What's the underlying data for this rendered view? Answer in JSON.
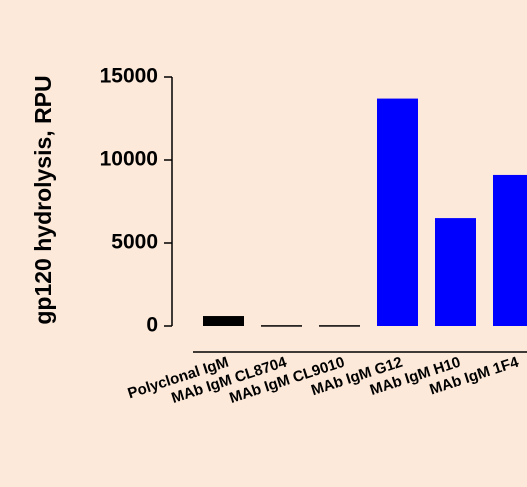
{
  "chart_data": {
    "type": "bar",
    "title": "",
    "xlabel": "",
    "ylabel": "gp120 hydrolysis, RPU",
    "ylim": [
      0,
      15000
    ],
    "yticks": [
      0,
      5000,
      10000,
      15000
    ],
    "ytick_labels": [
      "0",
      "5000",
      "10000",
      "15000"
    ],
    "categories": [
      "Polyclonal IgM",
      "MAb IgM CL8704",
      "MAb IgM CL9010",
      "MAb IgM G12",
      "MAb IgM H10",
      "MAb IgM 1F4"
    ],
    "values": [
      600,
      50,
      50,
      13700,
      6500,
      9100
    ],
    "colors": [
      "#000000",
      "#000000",
      "#000000",
      "#0000ff",
      "#0000ff",
      "#0000ff"
    ],
    "grid": false,
    "legend": "none"
  }
}
